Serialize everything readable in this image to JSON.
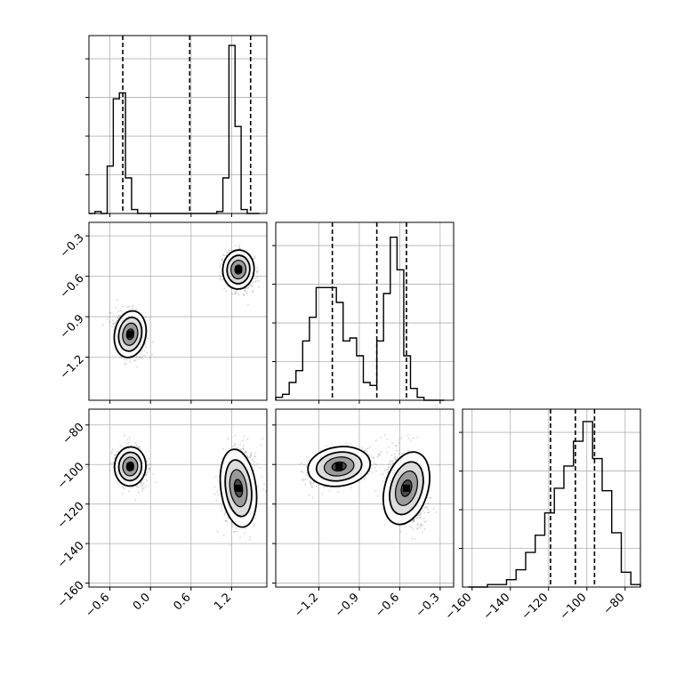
{
  "figure": {
    "type": "corner-plot",
    "background": "#ffffff",
    "line_color": "#000000",
    "grid_color": "#b0b0b0",
    "scatter_color": "#808080"
  },
  "chart_data": [
    {
      "type": "histogram",
      "panel": "hist-param-1",
      "bins": [
        -0.91,
        -0.82,
        -0.73,
        -0.64,
        -0.55,
        -0.46,
        -0.37,
        -0.28,
        -0.19,
        -0.1,
        -0.01,
        0.08,
        0.17,
        0.26,
        0.35,
        0.44,
        0.53,
        0.62,
        0.71,
        0.8,
        0.89,
        0.98,
        1.07,
        1.16,
        1.25,
        1.34,
        1.43,
        1.52,
        1.61
      ],
      "counts": [
        0,
        1,
        0,
        24,
        58,
        61,
        18,
        2,
        0,
        0,
        0,
        0,
        0,
        0,
        0,
        0,
        0,
        0,
        0,
        0,
        0,
        1,
        18,
        85,
        44,
        2,
        0,
        0
      ],
      "quantile_lines": [
        -0.41,
        0.58,
        1.48
      ],
      "xlim": [
        -0.91,
        1.72
      ],
      "ylim": [
        0,
        90
      ],
      "xticks": [
        "−0.6",
        "0.0",
        "0.6",
        "1.2"
      ],
      "xtick_values": [
        -0.6,
        0.0,
        0.6,
        1.2
      ]
    },
    {
      "type": "scatter-contour",
      "panel": "joint-param-1-param-2",
      "clusters": [
        {
          "x": -0.3,
          "y": -1.03
        },
        {
          "x": 1.3,
          "y": -0.55
        }
      ],
      "xlim": [
        -0.91,
        1.72
      ],
      "ylim": [
        -1.52,
        -0.2
      ],
      "yticks": [
        "−0.3",
        "−0.6",
        "−0.9",
        "−1.2"
      ],
      "ytick_values": [
        -0.3,
        -0.6,
        -0.9,
        -1.2
      ]
    },
    {
      "type": "histogram",
      "panel": "hist-param-2",
      "bins": [
        -1.52,
        -1.47,
        -1.42,
        -1.37,
        -1.32,
        -1.27,
        -1.22,
        -1.17,
        -1.12,
        -1.07,
        -1.02,
        -0.97,
        -0.92,
        -0.87,
        -0.82,
        -0.77,
        -0.72,
        -0.67,
        -0.62,
        -0.57,
        -0.52,
        -0.47,
        -0.42,
        -0.37,
        -0.32,
        -0.27
      ],
      "counts": [
        1,
        2,
        6,
        10,
        20,
        28,
        38,
        38,
        38,
        33,
        20,
        21,
        15,
        6,
        5,
        20,
        36,
        55,
        44,
        15,
        4,
        1,
        0,
        0,
        0
      ],
      "quantile_lines": [
        -1.1,
        -0.77,
        -0.55
      ],
      "xlim": [
        -1.52,
        -0.2
      ],
      "ylim": [
        0,
        60
      ],
      "xticks": [
        "−1.2",
        "−0.9",
        "−0.6",
        "−0.3"
      ],
      "xtick_values": [
        -1.2,
        -0.9,
        -0.6,
        -0.3
      ]
    },
    {
      "type": "scatter-contour",
      "panel": "joint-param-1-param-3",
      "clusters": [
        {
          "x": -0.3,
          "y": -101
        },
        {
          "x": 1.3,
          "y": -112
        }
      ],
      "xlim": [
        -0.91,
        1.72
      ],
      "ylim": [
        -162,
        -72
      ],
      "yticks": [
        "−80",
        "−100",
        "−120",
        "−140",
        "−160"
      ],
      "ytick_values": [
        -80,
        -100,
        -120,
        -140,
        -160
      ]
    },
    {
      "type": "scatter-contour",
      "panel": "joint-param-2-param-3",
      "clusters": [
        {
          "x": -1.05,
          "y": -101
        },
        {
          "x": -0.55,
          "y": -112
        }
      ],
      "xlim": [
        -1.52,
        -0.2
      ],
      "ylim": [
        -162,
        -72
      ]
    },
    {
      "type": "histogram",
      "panel": "hist-param-3",
      "bins": [
        -162,
        -157,
        -152,
        -147,
        -142,
        -137,
        -132,
        -127,
        -122,
        -117,
        -112,
        -107,
        -102,
        -97,
        -92,
        -87,
        -82,
        -77,
        -72
      ],
      "counts": [
        0,
        0,
        1,
        1,
        3,
        7,
        14,
        21,
        30,
        40,
        49,
        59,
        67,
        52,
        39,
        22,
        6,
        1
      ],
      "quantile_lines": [
        -119,
        -106,
        -96
      ],
      "xlim": [
        -165,
        -72
      ],
      "ylim": [
        0,
        72
      ],
      "xticks": [
        "−160",
        "−140",
        "−120",
        "−100",
        "−80"
      ],
      "xtick_values": [
        -160,
        -140,
        -120,
        -100,
        -80
      ]
    }
  ]
}
